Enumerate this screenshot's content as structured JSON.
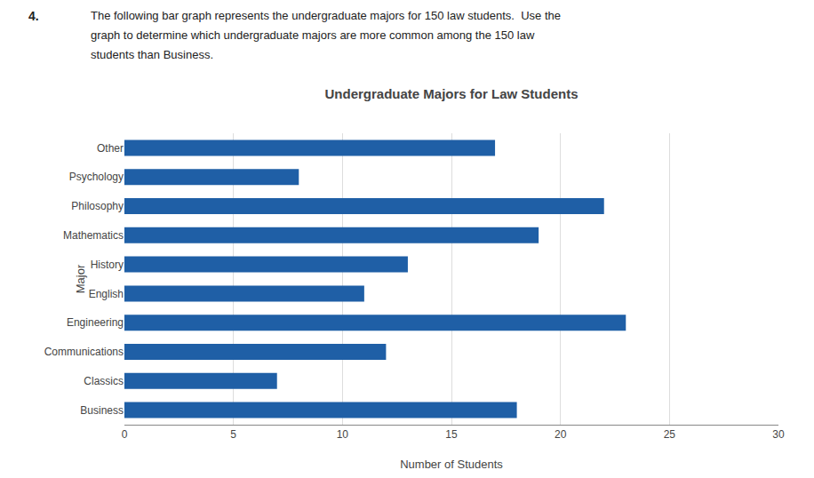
{
  "chart_data": {
    "type": "bar",
    "orientation": "horizontal",
    "title": "Undergraduate Majors for Law Students",
    "xlabel": "Number of Students",
    "ylabel": "Major",
    "annotations": [
      "4.",
      "The following bar graph represents the undergraduate majors for 150 law students.  Use the",
      "graph to determine which undergraduate majors are more common among the 150 law",
      "students than Business."
    ],
    "categories": [
      "Business",
      "Classics",
      "Communications",
      "Engineering",
      "English",
      "History",
      "Mathematics",
      "Philosophy",
      "Psychology",
      "Other"
    ],
    "values": [
      18,
      7,
      12,
      23,
      11,
      13,
      19,
      22,
      8,
      17
    ],
    "color": "#1F5FA6",
    "xlim": [
      0,
      30
    ],
    "xticks": [
      0,
      5,
      10,
      15,
      20,
      25,
      30
    ],
    "grid": true
  }
}
